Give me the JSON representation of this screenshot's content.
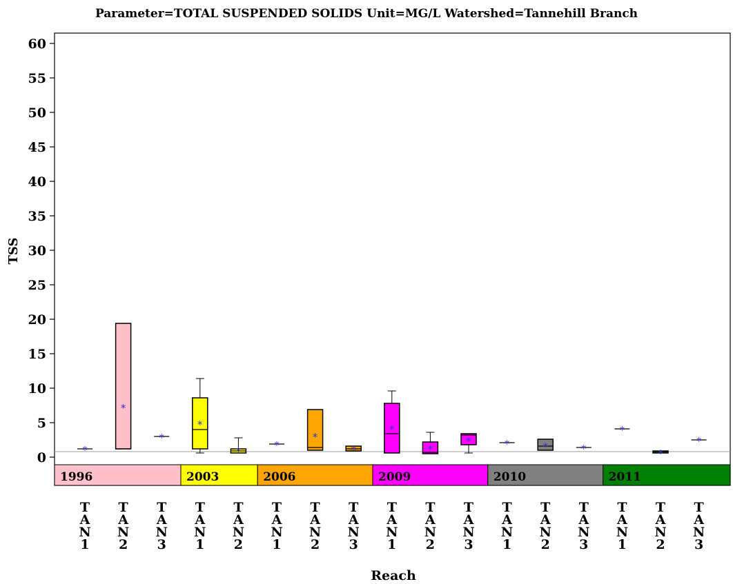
{
  "chart_data": {
    "type": "box",
    "title": "Parameter=TOTAL SUSPENDED SOLIDS Unit=MG/L Watershed=Tannehill Branch",
    "xlabel": "Reach",
    "ylabel": "TSS",
    "ylim": [
      -4,
      61
    ],
    "yticks": [
      0,
      5,
      10,
      15,
      20,
      25,
      30,
      35,
      40,
      45,
      50,
      55,
      60
    ],
    "reference_line": 0.8,
    "groups": [
      {
        "label": "1996",
        "color": "#ffc0cb",
        "reaches": [
          {
            "reach": "TAN1",
            "min": 1.2,
            "q1": 1.2,
            "median": 1.2,
            "q3": 1.2,
            "max": 1.2,
            "mean": 1.2
          },
          {
            "reach": "TAN2",
            "min": 1.2,
            "q1": 1.2,
            "median": 1.2,
            "q3": 19.4,
            "max": 19.4,
            "mean": 7.3
          },
          {
            "reach": "TAN3",
            "min": 3.0,
            "q1": 3.0,
            "median": 3.0,
            "q3": 3.0,
            "max": 3.0,
            "mean": 3.0
          }
        ]
      },
      {
        "label": "2003",
        "color": "#ffff00",
        "reaches": [
          {
            "reach": "TAN1",
            "min": 0.6,
            "q1": 1.2,
            "median": 4.0,
            "q3": 8.6,
            "max": 11.4,
            "mean": 4.9
          },
          {
            "reach": "TAN2",
            "min": 0.6,
            "q1": 0.6,
            "median": 0.9,
            "q3": 1.2,
            "max": 2.8,
            "mean": 1.0
          }
        ]
      },
      {
        "label": "2006",
        "color": "#ffa500",
        "reaches": [
          {
            "reach": "TAN1",
            "min": 1.9,
            "q1": 1.9,
            "median": 1.9,
            "q3": 1.9,
            "max": 1.9,
            "mean": 1.9
          },
          {
            "reach": "TAN2",
            "min": 1.0,
            "q1": 1.0,
            "median": 1.4,
            "q3": 6.9,
            "max": 6.9,
            "mean": 3.1
          },
          {
            "reach": "TAN3",
            "min": 0.9,
            "q1": 0.9,
            "median": 1.2,
            "q3": 1.6,
            "max": 1.6,
            "mean": 1.2
          }
        ]
      },
      {
        "label": "2009",
        "color": "#ff00ff",
        "reaches": [
          {
            "reach": "TAN1",
            "min": 0.6,
            "q1": 0.6,
            "median": 3.4,
            "q3": 7.8,
            "max": 9.6,
            "mean": 4.2
          },
          {
            "reach": "TAN2",
            "min": 0.5,
            "q1": 0.5,
            "median": 0.7,
            "q3": 2.2,
            "max": 3.6,
            "mean": 1.3
          },
          {
            "reach": "TAN3",
            "min": 0.6,
            "q1": 1.8,
            "median": 3.2,
            "q3": 3.4,
            "max": 3.4,
            "mean": 2.5
          }
        ]
      },
      {
        "label": "2010",
        "color": "#808080",
        "reaches": [
          {
            "reach": "TAN1",
            "min": 2.1,
            "q1": 2.1,
            "median": 2.1,
            "q3": 2.1,
            "max": 2.1,
            "mean": 2.1
          },
          {
            "reach": "TAN2",
            "min": 1.0,
            "q1": 1.0,
            "median": 1.6,
            "q3": 2.6,
            "max": 2.6,
            "mean": 1.7
          },
          {
            "reach": "TAN3",
            "min": 1.4,
            "q1": 1.4,
            "median": 1.4,
            "q3": 1.4,
            "max": 1.4,
            "mean": 1.4
          }
        ]
      },
      {
        "label": "2011",
        "color": "#008000",
        "reaches": [
          {
            "reach": "TAN1",
            "min": 4.1,
            "q1": 4.1,
            "median": 4.1,
            "q3": 4.1,
            "max": 4.1,
            "mean": 4.1
          },
          {
            "reach": "TAN2",
            "min": 0.6,
            "q1": 0.6,
            "median": 0.8,
            "q3": 0.9,
            "max": 0.9,
            "mean": 0.7
          },
          {
            "reach": "TAN3",
            "min": 2.5,
            "q1": 2.5,
            "median": 2.5,
            "q3": 2.5,
            "max": 2.5,
            "mean": 2.5
          }
        ]
      }
    ],
    "mean_marker_color": "#3333cc"
  }
}
